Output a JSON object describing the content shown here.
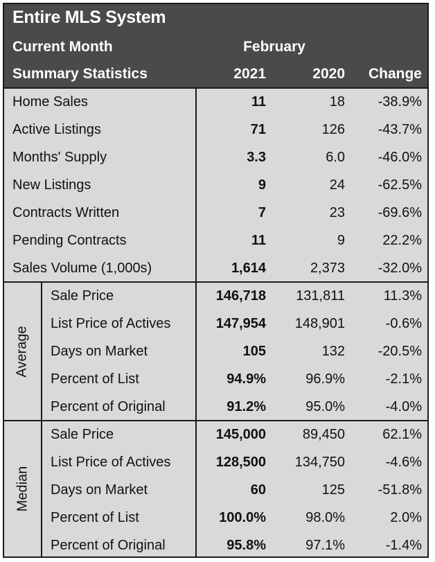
{
  "header": {
    "title": "Entire MLS System",
    "period_label": "Current Month",
    "month": "February",
    "section_label": "Summary Statistics",
    "col_2021": "2021",
    "col_2020": "2020",
    "col_change": "Change"
  },
  "summary": [
    {
      "label": "Home Sales",
      "v2021": "11",
      "v2020": "18",
      "change": "-38.9%"
    },
    {
      "label": "Active Listings",
      "v2021": "71",
      "v2020": "126",
      "change": "-43.7%"
    },
    {
      "label": "Months' Supply",
      "v2021": "3.3",
      "v2020": "6.0",
      "change": "-46.0%"
    },
    {
      "label": "New Listings",
      "v2021": "9",
      "v2020": "24",
      "change": "-62.5%"
    },
    {
      "label": "Contracts Written",
      "v2021": "7",
      "v2020": "23",
      "change": "-69.6%"
    },
    {
      "label": "Pending Contracts",
      "v2021": "11",
      "v2020": "9",
      "change": "22.2%"
    },
    {
      "label": "Sales Volume (1,000s)",
      "v2021": "1,614",
      "v2020": "2,373",
      "change": "-32.0%"
    }
  ],
  "average": {
    "label": "Average",
    "rows": [
      {
        "label": "Sale Price",
        "v2021": "146,718",
        "v2020": "131,811",
        "change": "11.3%"
      },
      {
        "label": "List Price of Actives",
        "v2021": "147,954",
        "v2020": "148,901",
        "change": "-0.6%"
      },
      {
        "label": "Days on Market",
        "v2021": "105",
        "v2020": "132",
        "change": "-20.5%"
      },
      {
        "label": "Percent of List",
        "v2021": "94.9%",
        "v2020": "96.9%",
        "change": "-2.1%"
      },
      {
        "label": "Percent of Original",
        "v2021": "91.2%",
        "v2020": "95.0%",
        "change": "-4.0%"
      }
    ]
  },
  "median": {
    "label": "Median",
    "rows": [
      {
        "label": "Sale Price",
        "v2021": "145,000",
        "v2020": "89,450",
        "change": "62.1%"
      },
      {
        "label": "List Price of Actives",
        "v2021": "128,500",
        "v2020": "134,750",
        "change": "-4.6%"
      },
      {
        "label": "Days on Market",
        "v2021": "60",
        "v2020": "125",
        "change": "-51.8%"
      },
      {
        "label": "Percent of List",
        "v2021": "100.0%",
        "v2020": "98.0%",
        "change": "2.0%"
      },
      {
        "label": "Percent of Original",
        "v2021": "95.8%",
        "v2020": "97.1%",
        "change": "-1.4%"
      }
    ]
  }
}
